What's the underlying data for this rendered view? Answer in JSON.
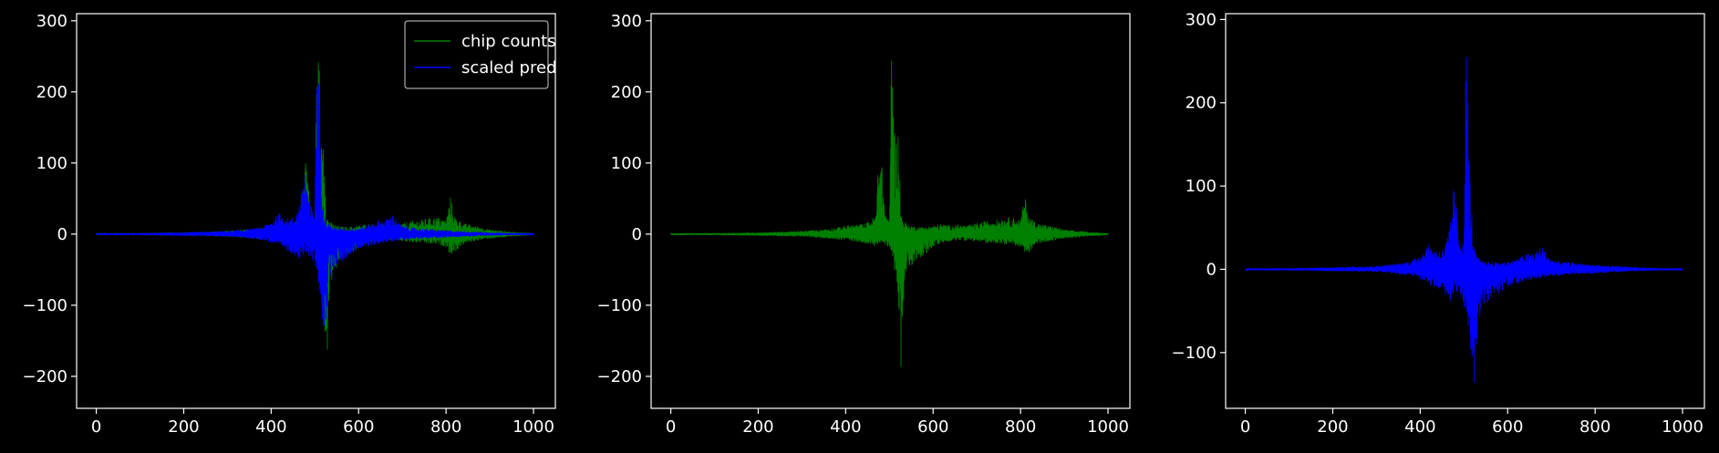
{
  "figure": {
    "background": "#000000",
    "foreground": "#ffffff"
  },
  "chart_data": [
    {
      "type": "line",
      "title": "",
      "xlabel": "",
      "ylabel": "",
      "xlim": [
        -45,
        1050
      ],
      "ylim": [
        -245,
        310
      ],
      "xticks": [
        0,
        200,
        400,
        600,
        800,
        1000
      ],
      "yticks": [
        -200,
        -100,
        0,
        100,
        200,
        300
      ],
      "tick_labels": {
        "x": [
          "0",
          "200",
          "400",
          "600",
          "800",
          "1000"
        ],
        "y": [
          "−200",
          "−100",
          "0",
          "100",
          "200",
          "300"
        ]
      },
      "grid": false,
      "legend": {
        "placement": "upper right",
        "entries": [
          "chip counts",
          "scaled pred"
        ]
      },
      "series": [
        {
          "name": "chip counts",
          "color": "#008000",
          "envelope": {
            "x": [
              0,
              100,
              200,
              300,
              340,
              380,
              400,
              420,
              440,
              455,
              470,
              475,
              480,
              490,
              500,
              505,
              510,
              513,
              518,
              522,
              526,
              530,
              535,
              540,
              550,
              560,
              580,
              600,
              620,
              640,
              660,
              680,
              700,
              720,
              740,
              760,
              780,
              800,
              810,
              820,
              840,
              860,
              880,
              900,
              950,
              1000
            ],
            "upper": [
              1,
              1,
              2,
              4,
              6,
              9,
              12,
              13,
              14,
              18,
              28,
              125,
              120,
              35,
              15,
              282,
              240,
              110,
              157,
              135,
              30,
              22,
              18,
              14,
              12,
              10,
              10,
              12,
              14,
              12,
              13,
              12,
              15,
              18,
              20,
              22,
              24,
              20,
              53,
              24,
              15,
              12,
              10,
              6,
              3,
              1
            ],
            "lower": [
              -1,
              -1,
              -2,
              -3,
              -5,
              -7,
              -8,
              -10,
              -12,
              -15,
              -18,
              -15,
              -12,
              -15,
              -22,
              -30,
              -45,
              -60,
              -70,
              -118,
              -222,
              -110,
              -75,
              -60,
              -50,
              -35,
              -30,
              -18,
              -12,
              -10,
              -8,
              -9,
              -10,
              -12,
              -12,
              -14,
              -14,
              -18,
              -30,
              -25,
              -14,
              -10,
              -8,
              -6,
              -3,
              -1
            ]
          }
        },
        {
          "name": "scaled pred",
          "color": "#0000ff",
          "envelope": {
            "x": [
              0,
              100,
              200,
              300,
              340,
              380,
              400,
              420,
              440,
              455,
              465,
              470,
              475,
              480,
              490,
              500,
              505,
              510,
              513,
              518,
              522,
              526,
              530,
              535,
              540,
              550,
              560,
              580,
              600,
              620,
              640,
              660,
              680,
              690,
              700,
              720,
              740,
              760,
              780,
              800,
              810,
              820,
              840,
              860,
              880,
              900,
              950,
              1000
            ],
            "upper": [
              1,
              1,
              2,
              4,
              6,
              10,
              18,
              30,
              22,
              25,
              45,
              60,
              100,
              90,
              40,
              35,
              285,
              220,
              120,
              70,
              30,
              20,
              16,
              12,
              10,
              9,
              8,
              8,
              9,
              12,
              18,
              20,
              28,
              18,
              12,
              9,
              8,
              7,
              6,
              5,
              5,
              4,
              4,
              3,
              3,
              2,
              1,
              1
            ],
            "lower": [
              -1,
              -1,
              -2,
              -3,
              -5,
              -8,
              -12,
              -18,
              -25,
              -30,
              -38,
              -40,
              -30,
              -25,
              -35,
              -45,
              -60,
              -80,
              -100,
              -130,
              -145,
              -120,
              -80,
              -60,
              -50,
              -42,
              -40,
              -30,
              -20,
              -18,
              -14,
              -12,
              -10,
              -9,
              -8,
              -7,
              -6,
              -6,
              -5,
              -5,
              -4,
              -4,
              -3,
              -3,
              -2,
              -2,
              -1,
              -1
            ]
          }
        }
      ]
    },
    {
      "type": "line",
      "title": "",
      "xlabel": "",
      "ylabel": "",
      "xlim": [
        -45,
        1050
      ],
      "ylim": [
        -245,
        310
      ],
      "xticks": [
        0,
        200,
        400,
        600,
        800,
        1000
      ],
      "yticks": [
        -200,
        -100,
        0,
        100,
        200,
        300
      ],
      "tick_labels": {
        "x": [
          "0",
          "200",
          "400",
          "600",
          "800",
          "1000"
        ],
        "y": [
          "−200",
          "−100",
          "0",
          "100",
          "200",
          "300"
        ]
      },
      "grid": false,
      "legend": null,
      "series": [
        {
          "name": "",
          "color": "#008000",
          "envelope": {
            "x": [
              0,
              100,
              200,
              300,
              340,
              380,
              400,
              420,
              440,
              455,
              470,
              475,
              480,
              490,
              500,
              505,
              510,
              513,
              518,
              522,
              526,
              530,
              535,
              540,
              550,
              560,
              580,
              600,
              620,
              640,
              660,
              680,
              700,
              720,
              740,
              760,
              780,
              800,
              810,
              820,
              840,
              860,
              880,
              900,
              950,
              1000
            ],
            "upper": [
              1,
              1,
              2,
              4,
              6,
              9,
              12,
              13,
              14,
              18,
              28,
              125,
              120,
              35,
              15,
              282,
              240,
              110,
              157,
              135,
              30,
              22,
              18,
              14,
              12,
              10,
              10,
              12,
              14,
              12,
              13,
              12,
              15,
              18,
              20,
              22,
              24,
              20,
              53,
              24,
              15,
              12,
              10,
              6,
              3,
              1
            ],
            "lower": [
              -1,
              -1,
              -2,
              -3,
              -5,
              -7,
              -8,
              -10,
              -12,
              -15,
              -18,
              -15,
              -12,
              -15,
              -22,
              -30,
              -45,
              -60,
              -70,
              -118,
              -222,
              -110,
              -75,
              -60,
              -50,
              -35,
              -30,
              -18,
              -12,
              -10,
              -8,
              -9,
              -10,
              -12,
              -12,
              -14,
              -14,
              -18,
              -30,
              -25,
              -14,
              -10,
              -8,
              -6,
              -3,
              -1
            ]
          }
        }
      ]
    },
    {
      "type": "line",
      "title": "",
      "xlabel": "",
      "ylabel": "",
      "xlim": [
        -45,
        1050
      ],
      "ylim": [
        -167,
        307
      ],
      "xticks": [
        0,
        200,
        400,
        600,
        800,
        1000
      ],
      "yticks": [
        -100,
        0,
        100,
        200,
        300
      ],
      "tick_labels": {
        "x": [
          "0",
          "200",
          "400",
          "600",
          "800",
          "1000"
        ],
        "y": [
          "−100",
          "0",
          "100",
          "200",
          "300"
        ]
      },
      "grid": false,
      "legend": null,
      "series": [
        {
          "name": "",
          "color": "#0000ff",
          "envelope": {
            "x": [
              0,
              100,
              200,
              300,
              340,
              380,
              400,
              420,
              440,
              455,
              465,
              470,
              475,
              480,
              490,
              500,
              505,
              510,
              513,
              518,
              522,
              526,
              530,
              535,
              540,
              550,
              560,
              580,
              600,
              620,
              640,
              660,
              680,
              690,
              700,
              720,
              740,
              760,
              780,
              800,
              810,
              820,
              840,
              860,
              880,
              900,
              950,
              1000
            ],
            "upper": [
              1,
              1,
              2,
              4,
              6,
              10,
              18,
              30,
              22,
              25,
              45,
              60,
              100,
              90,
              40,
              35,
              285,
              220,
              120,
              70,
              30,
              20,
              16,
              12,
              10,
              9,
              8,
              8,
              9,
              12,
              18,
              20,
              28,
              18,
              12,
              9,
              8,
              7,
              6,
              5,
              5,
              4,
              4,
              3,
              3,
              2,
              1,
              1
            ],
            "lower": [
              -1,
              -1,
              -2,
              -3,
              -5,
              -8,
              -12,
              -18,
              -25,
              -30,
              -38,
              -40,
              -30,
              -25,
              -35,
              -45,
              -60,
              -80,
              -100,
              -130,
              -145,
              -120,
              -80,
              -60,
              -50,
              -42,
              -40,
              -30,
              -20,
              -18,
              -14,
              -12,
              -10,
              -9,
              -8,
              -7,
              -6,
              -6,
              -5,
              -5,
              -4,
              -4,
              -3,
              -3,
              -2,
              -2,
              -1,
              -1
            ]
          }
        }
      ]
    }
  ]
}
